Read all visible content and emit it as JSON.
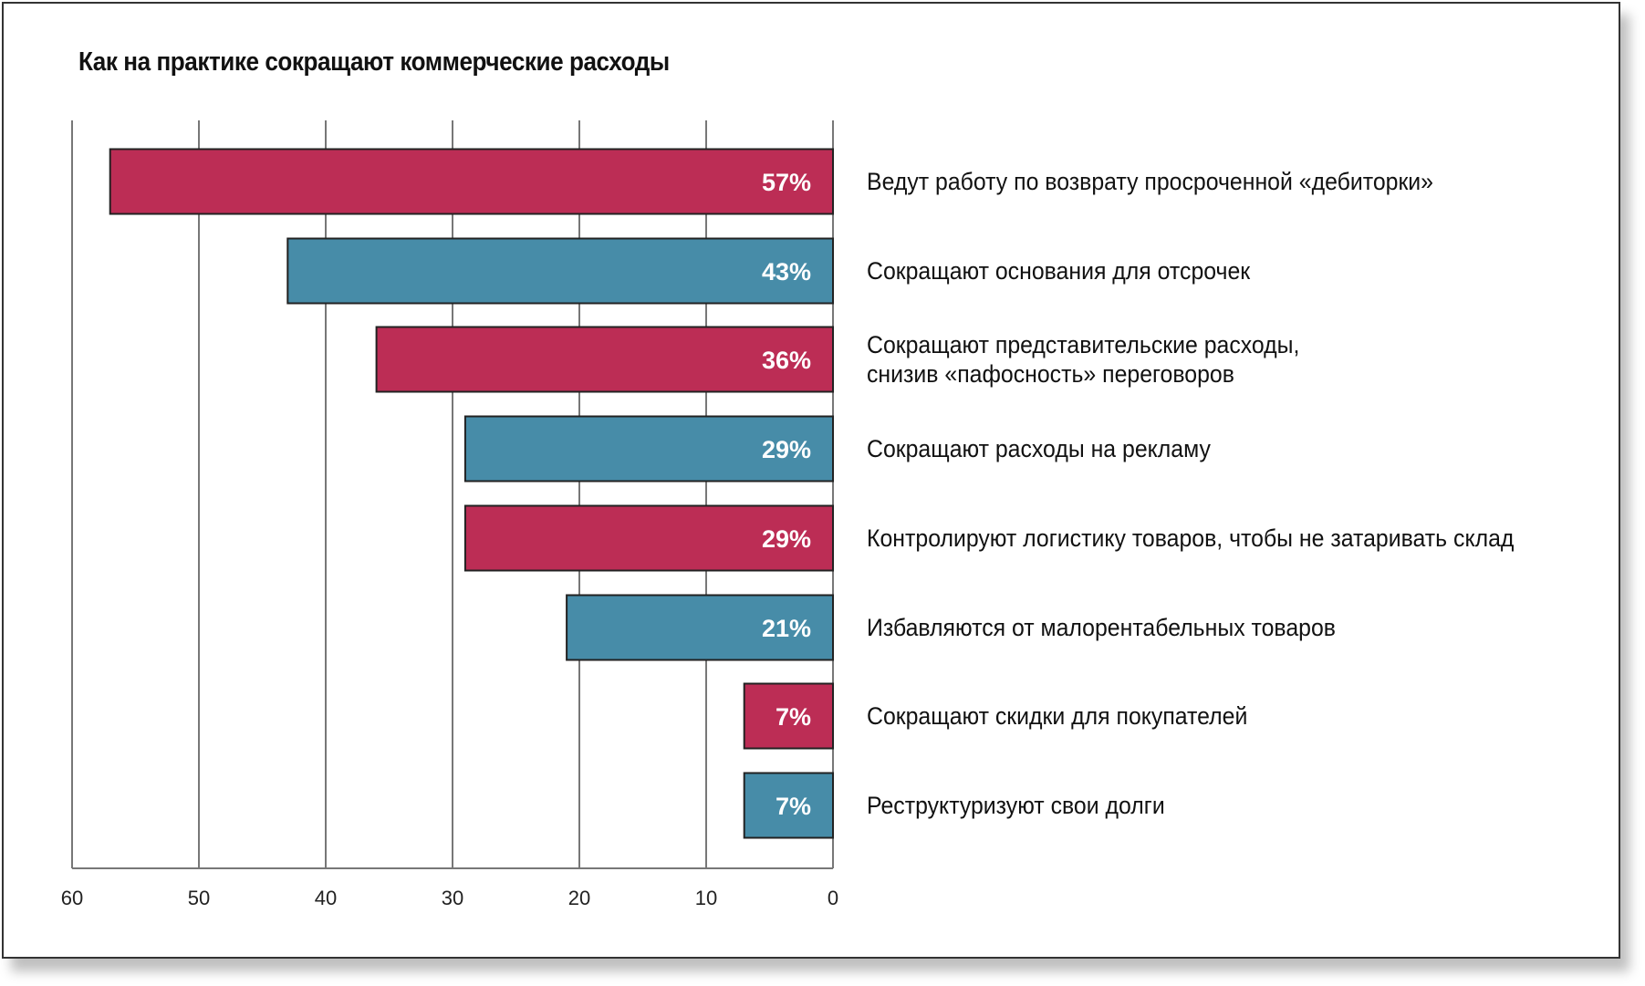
{
  "chart_data": {
    "type": "bar",
    "orientation": "horizontal-reversed",
    "title": "Как на практике сокращают коммерческие расходы",
    "categories": [
      "Ведут работу по возврату просроченной «дебиторки»",
      "Сокращают основания для отсрочек",
      "Сокращают представительские расходы,\nснизив «пафосность» переговоров",
      "Сокращают расходы на рекламу",
      "Контролируют логистику товаров, чтобы не затаривать склад",
      "Избавляются от малорентабельных товаров",
      "Сокращают скидки для покупателей",
      "Реструктуризуют свои долги"
    ],
    "values": [
      57,
      43,
      36,
      29,
      29,
      21,
      7,
      7
    ],
    "value_labels": [
      "57%",
      "43%",
      "36%",
      "29%",
      "29%",
      "21%",
      "7%",
      "7%"
    ],
    "xlim": [
      0,
      60
    ],
    "xticks": [
      "60",
      "50",
      "40",
      "30",
      "20",
      "10",
      "0"
    ],
    "xtick_values": [
      60,
      50,
      40,
      30,
      20,
      10,
      0
    ],
    "grid": true,
    "colors": [
      "#BC2D55",
      "#478CA8"
    ]
  }
}
